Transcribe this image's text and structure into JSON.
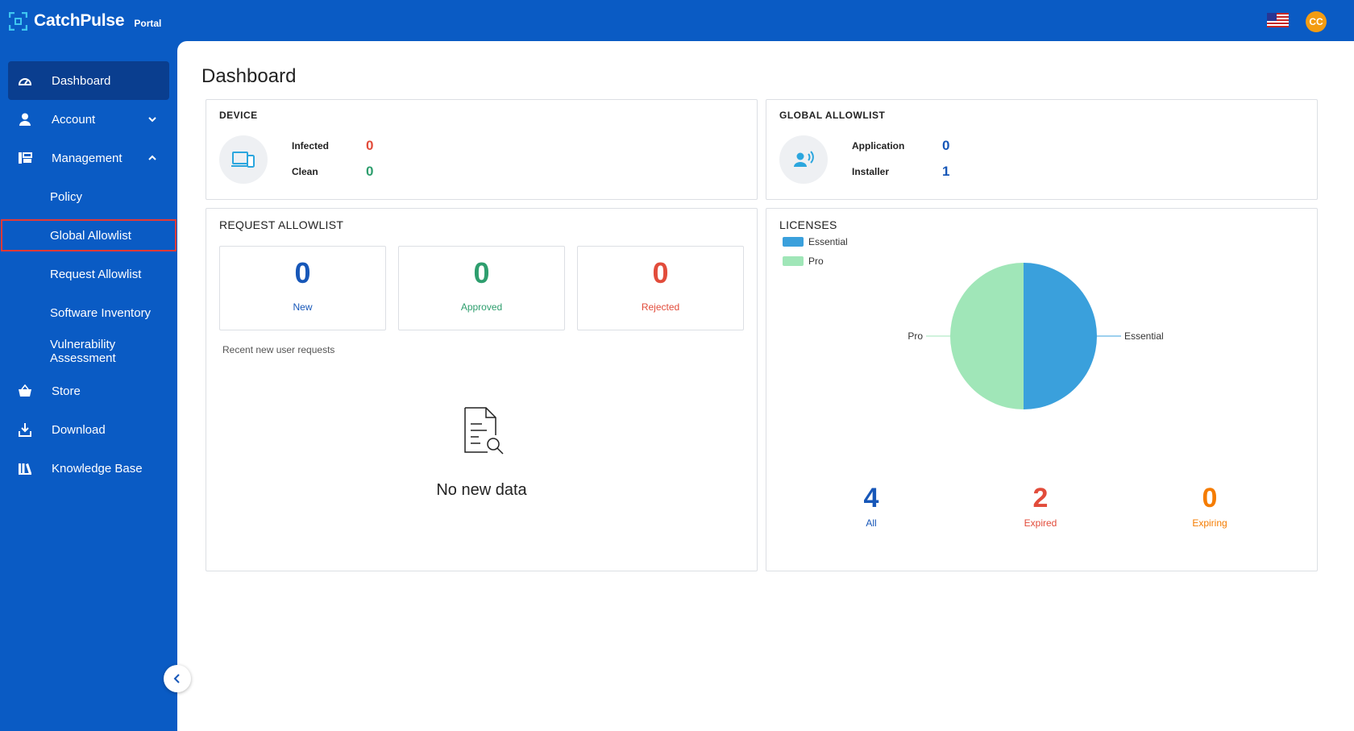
{
  "header": {
    "brand": "CatchPulse",
    "brand_sub": "Portal",
    "avatar_initials": "CC",
    "flag_icon": "us-flag-icon"
  },
  "sidebar": {
    "items": [
      {
        "label": "Dashboard",
        "icon": "dashboard-icon"
      },
      {
        "label": "Account",
        "icon": "user-icon"
      },
      {
        "label": "Management",
        "icon": "management-icon"
      },
      {
        "label": "Store",
        "icon": "basket-icon"
      },
      {
        "label": "Download",
        "icon": "download-icon"
      },
      {
        "label": "Knowledge Base",
        "icon": "books-icon"
      }
    ],
    "management_sub": [
      {
        "label": "Policy"
      },
      {
        "label": "Global Allowlist"
      },
      {
        "label": "Request Allowlist"
      },
      {
        "label": "Software Inventory"
      },
      {
        "label": "Vulnerability Assessment"
      }
    ]
  },
  "page": {
    "title": "Dashboard"
  },
  "device": {
    "title": "DEVICE",
    "infected_label": "Infected",
    "infected_value": "0",
    "clean_label": "Clean",
    "clean_value": "0"
  },
  "global_allowlist": {
    "title": "GLOBAL ALLOWLIST",
    "application_label": "Application",
    "application_value": "0",
    "installer_label": "Installer",
    "installer_value": "1"
  },
  "request_allowlist": {
    "title": "REQUEST ALLOWLIST",
    "boxes": [
      {
        "value": "0",
        "label": "New",
        "color": "#1757b8"
      },
      {
        "value": "0",
        "label": "Approved",
        "color": "#2e9e6e"
      },
      {
        "value": "0",
        "label": "Rejected",
        "color": "#e24c3b"
      }
    ],
    "recent_label": "Recent new user requests",
    "empty_text": "No new data"
  },
  "licenses": {
    "title": "LICENSES",
    "stats": [
      {
        "value": "4",
        "label": "All",
        "color": "#1757b8"
      },
      {
        "value": "2",
        "label": "Expired",
        "color": "#e24c3b"
      },
      {
        "value": "0",
        "label": "Expiring",
        "color": "#f57c00"
      }
    ]
  },
  "chart_data": {
    "type": "pie",
    "categories": [
      "Essential",
      "Pro"
    ],
    "values": [
      50,
      50
    ],
    "colors": [
      "#3aa0dc",
      "#a0e6b8"
    ],
    "legend": "top-left"
  }
}
